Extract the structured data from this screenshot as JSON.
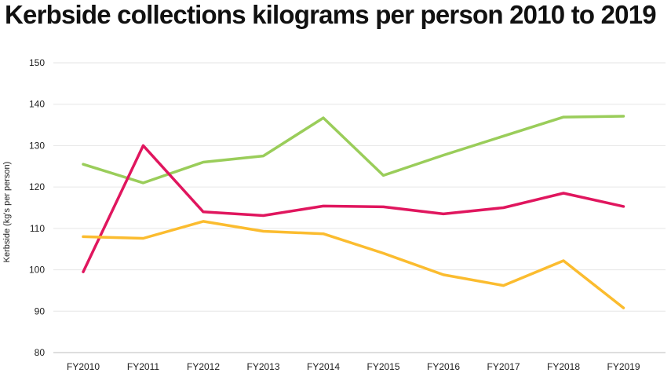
{
  "chart_data": {
    "type": "line",
    "title": "Kerbside collections kilograms per person 2010 to 2019",
    "xlabel": "",
    "ylabel": "Kerbside (kg's per person)",
    "ylim": [
      80,
      150
    ],
    "yticks": [
      80,
      90,
      100,
      110,
      120,
      130,
      140,
      150
    ],
    "grid": true,
    "legend": "none",
    "categories": [
      "FY2010",
      "FY2011",
      "FY2012",
      "FY2013",
      "FY2014",
      "FY2015",
      "FY2016",
      "FY2017",
      "FY2018",
      "FY2019"
    ],
    "series": [
      {
        "color": "#9acd5a",
        "values": [
          125.5,
          121,
          126,
          127.5,
          136.7,
          122.8,
          127.7,
          132.3,
          136.9,
          137.1
        ]
      },
      {
        "color": "#e0165e",
        "values": [
          99.5,
          130,
          114,
          113.1,
          115.4,
          115.2,
          113.5,
          115,
          118.5,
          115.3
        ]
      },
      {
        "color": "#fbbc2f",
        "values": [
          108,
          107.6,
          111.7,
          109.3,
          108.7,
          104,
          98.8,
          96.2,
          102.2,
          90.8
        ]
      }
    ]
  }
}
